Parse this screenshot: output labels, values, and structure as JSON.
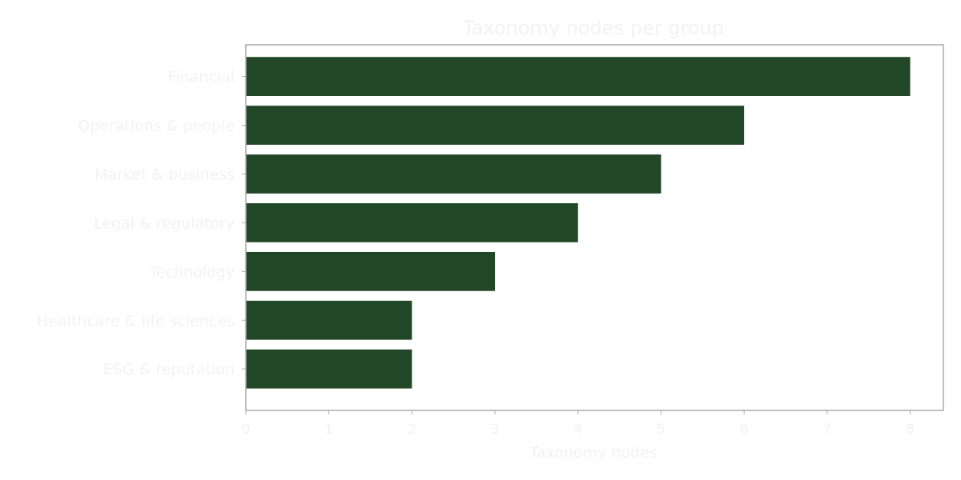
{
  "chart_data": {
    "type": "bar",
    "orientation": "horizontal",
    "title": "Taxonomy nodes per group",
    "xlabel": "Taxonomy nodes",
    "ylabel": "",
    "categories": [
      "Financial",
      "Operations & people",
      "Market & business",
      "Legal & regulatory",
      "Technology",
      "Healthcare & life sciences",
      "ESG & reputation"
    ],
    "values": [
      8,
      6,
      5,
      4,
      3,
      2,
      2
    ],
    "xlim": [
      0,
      8.4
    ],
    "xticks": [
      0,
      1,
      2,
      3,
      4,
      5,
      6,
      7,
      8
    ],
    "grid": false,
    "colors": {
      "bar": "#224726",
      "frame": "#aaaaaa",
      "text": "#f2f2f2",
      "tick": "#aaaaaa"
    }
  }
}
